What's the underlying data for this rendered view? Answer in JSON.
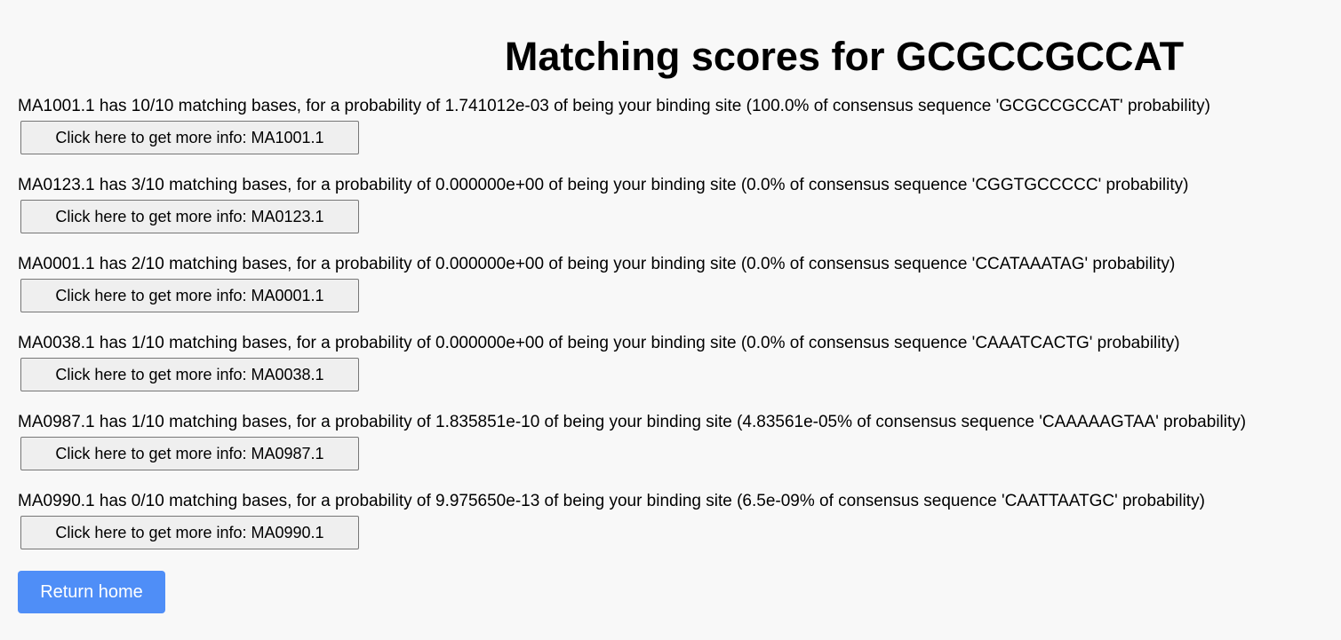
{
  "page": {
    "title": "Matching scores for GCGCCGCCAT"
  },
  "results": [
    {
      "text": "MA1001.1 has 10/10 matching bases, for a probability of 1.741012e-03 of being your binding site (100.0% of consensus sequence 'GCGCCGCCAT' probability)",
      "button": "Click here to get more info: MA1001.1"
    },
    {
      "text": "MA0123.1 has 3/10 matching bases, for a probability of 0.000000e+00 of being your binding site (0.0% of consensus sequence 'CGGTGCCCCC' probability)",
      "button": "Click here to get more info: MA0123.1"
    },
    {
      "text": "MA0001.1 has 2/10 matching bases, for a probability of 0.000000e+00 of being your binding site (0.0% of consensus sequence 'CCATAAATAG' probability)",
      "button": "Click here to get more info: MA0001.1"
    },
    {
      "text": "MA0038.1 has 1/10 matching bases, for a probability of 0.000000e+00 of being your binding site (0.0% of consensus sequence 'CAAATCACTG' probability)",
      "button": "Click here to get more info: MA0038.1"
    },
    {
      "text": "MA0987.1 has 1/10 matching bases, for a probability of 1.835851e-10 of being your binding site (4.83561e-05% of consensus sequence 'CAAAAAGTAA' probability)",
      "button": "Click here to get more info: MA0987.1"
    },
    {
      "text": "MA0990.1 has 0/10 matching bases, for a probability of 9.975650e-13 of being your binding site (6.5e-09% of consensus sequence 'CAATTAATGC' probability)",
      "button": "Click here to get more info: MA0990.1"
    }
  ],
  "home_button": {
    "label": "Return home"
  },
  "colors": {
    "background": "#f8f8f8",
    "home_button": "#4f8ef7",
    "info_button": "#efefef"
  }
}
